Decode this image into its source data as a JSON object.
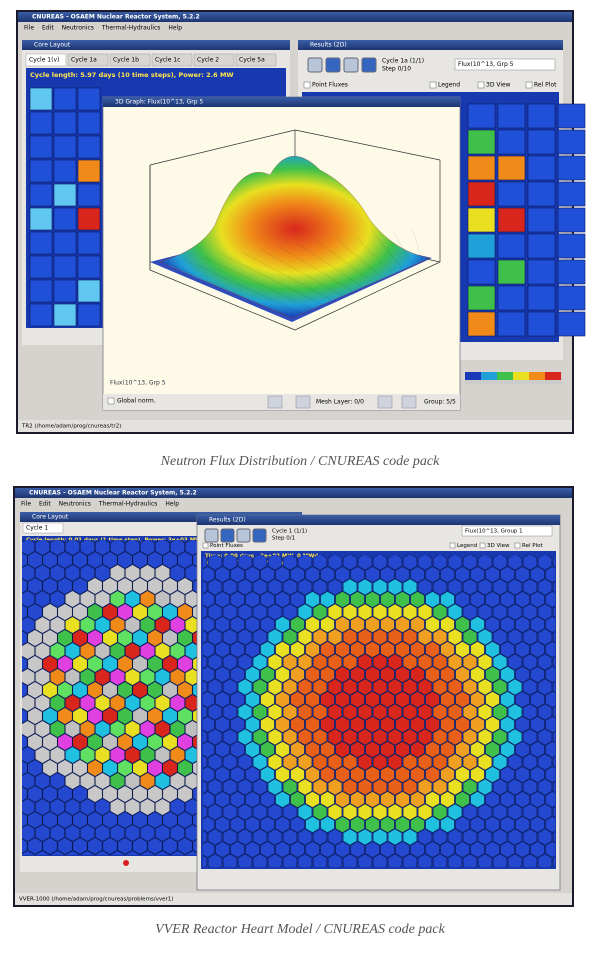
{
  "screen1": {
    "window_title": "CNUREAS - OSAEM Nuclear Reactor System, 5.2.2",
    "menu": [
      "File",
      "Edit",
      "Neutronics",
      "Thermal-Hydraulics",
      "Help"
    ],
    "core_layout": {
      "title": "Core Layout",
      "tabs": [
        "Cycle 1(v)",
        "Cycle 1a",
        "Cycle 1b",
        "Cycle 1c",
        "Cycle 2",
        "Cycle 5a"
      ],
      "info": "Cycle length: 5.97 days (10 time steps), Power: 2.6 MW"
    },
    "results": {
      "title": "Results (2D)",
      "cycle": "Cycle 1a (1/1)",
      "step": "Step 0/10",
      "select": "Flux(10^13, Grp 5",
      "options": [
        "Point Fluxes",
        "Legend",
        "3D View",
        "Rel Plot"
      ]
    },
    "graph": {
      "title": "3D Graph: Flux(10^13, Grp 5",
      "footer": "Flux(10^13, Grp 5",
      "global": "Global norm.",
      "mesh": "Mesh Layer: 0/0",
      "group": "Group: 5/5"
    },
    "status": "TR2 (/home/adam/prog/cnureas/tr2)"
  },
  "screen2": {
    "window_title": "CNUREAS - OSAEM Nuclear Reactor System, 5.2.2",
    "menu": [
      "File",
      "Edit",
      "Neutronics",
      "Thermal-Hydraulics",
      "Help"
    ],
    "core_layout": {
      "title": "Core Layout",
      "tab": "Cycle 1",
      "info": "Cycle length: 0.01 days (1 time step), Power: 3e+03 MW"
    },
    "results": {
      "title": "Results (2D)",
      "cycle": "Cycle 1 (1/1)",
      "step": "Step 0/1",
      "select": "Flux(10^13, Group 1",
      "options": [
        "Point Fluxes",
        "Legend",
        "3D View",
        "Rel Plot"
      ],
      "time": "Time: 0.00 days - 3e+03 MW, 0 MWd",
      "keff": "K-eff: 1.017062 (1573.8 pcm)"
    },
    "status": "VVER-1000 (/home/adam/prog/cnureas/problems/vver1)"
  },
  "captions": [
    "Neutron Flux Distribution / CNUREAS code pack",
    "VVER Reactor Heart Model / CNUREAS code pack"
  ]
}
